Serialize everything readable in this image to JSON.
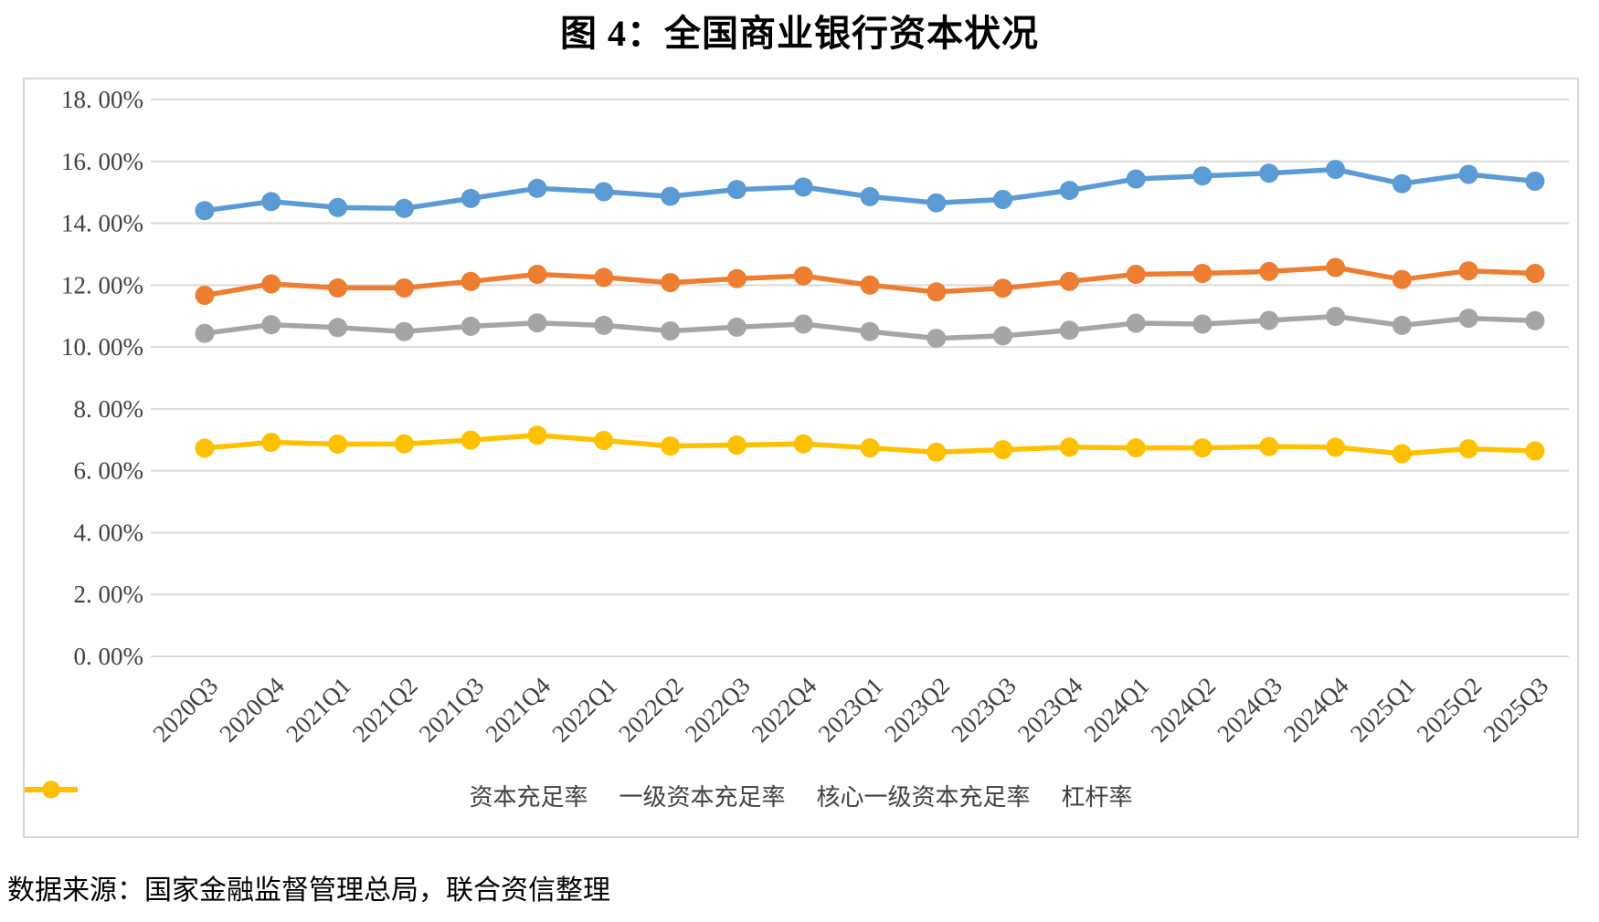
{
  "source_note": "数据来源：国家金融监督管理总局，联合资信整理",
  "chart_data": {
    "type": "line",
    "title": "图 4：全国商业银行资本状况",
    "categories": [
      "2020Q3",
      "2020Q4",
      "2021Q1",
      "2021Q2",
      "2021Q3",
      "2021Q4",
      "2022Q1",
      "2022Q2",
      "2022Q3",
      "2022Q4",
      "2023Q1",
      "2023Q2",
      "2023Q3",
      "2023Q4",
      "2024Q1",
      "2024Q2",
      "2024Q3",
      "2024Q4",
      "2025Q1",
      "2025Q2",
      "2025Q3"
    ],
    "series": [
      {
        "name": "资本充足率",
        "color": "#5B9BD5",
        "values": [
          14.41,
          14.7,
          14.51,
          14.48,
          14.8,
          15.13,
          15.02,
          14.87,
          15.09,
          15.17,
          14.86,
          14.66,
          14.77,
          15.06,
          15.43,
          15.53,
          15.62,
          15.74,
          15.28,
          15.58,
          15.36
        ]
      },
      {
        "name": "一级资本充足率",
        "color": "#ED7D31",
        "values": [
          11.67,
          12.04,
          11.91,
          11.91,
          12.12,
          12.35,
          12.25,
          12.08,
          12.21,
          12.3,
          12.0,
          11.78,
          11.9,
          12.12,
          12.35,
          12.38,
          12.44,
          12.57,
          12.18,
          12.46,
          12.38
        ]
      },
      {
        "name": "核心一级资本充足率",
        "color": "#A5A5A5",
        "values": [
          10.44,
          10.72,
          10.63,
          10.5,
          10.67,
          10.78,
          10.7,
          10.52,
          10.64,
          10.74,
          10.5,
          10.28,
          10.36,
          10.54,
          10.77,
          10.74,
          10.86,
          10.99,
          10.7,
          10.93,
          10.85
        ]
      },
      {
        "name": "杠杆率",
        "color": "#FFC000",
        "values": [
          6.73,
          6.92,
          6.86,
          6.87,
          6.99,
          7.15,
          6.98,
          6.8,
          6.83,
          6.87,
          6.74,
          6.6,
          6.68,
          6.76,
          6.74,
          6.74,
          6.78,
          6.76,
          6.55,
          6.71,
          6.64
        ]
      }
    ],
    "ylim": [
      0,
      18
    ],
    "ytick_step": 2,
    "ytick_labels": [
      "0. 00%",
      "2. 00%",
      "4. 00%",
      "6. 00%",
      "8. 00%",
      "10. 00%",
      "12. 00%",
      "14. 00%",
      "16. 00%",
      "18. 00%"
    ],
    "grid": true,
    "legend_position": "bottom",
    "tick_color": "#404040",
    "grid_color": "#d9d9d9"
  }
}
